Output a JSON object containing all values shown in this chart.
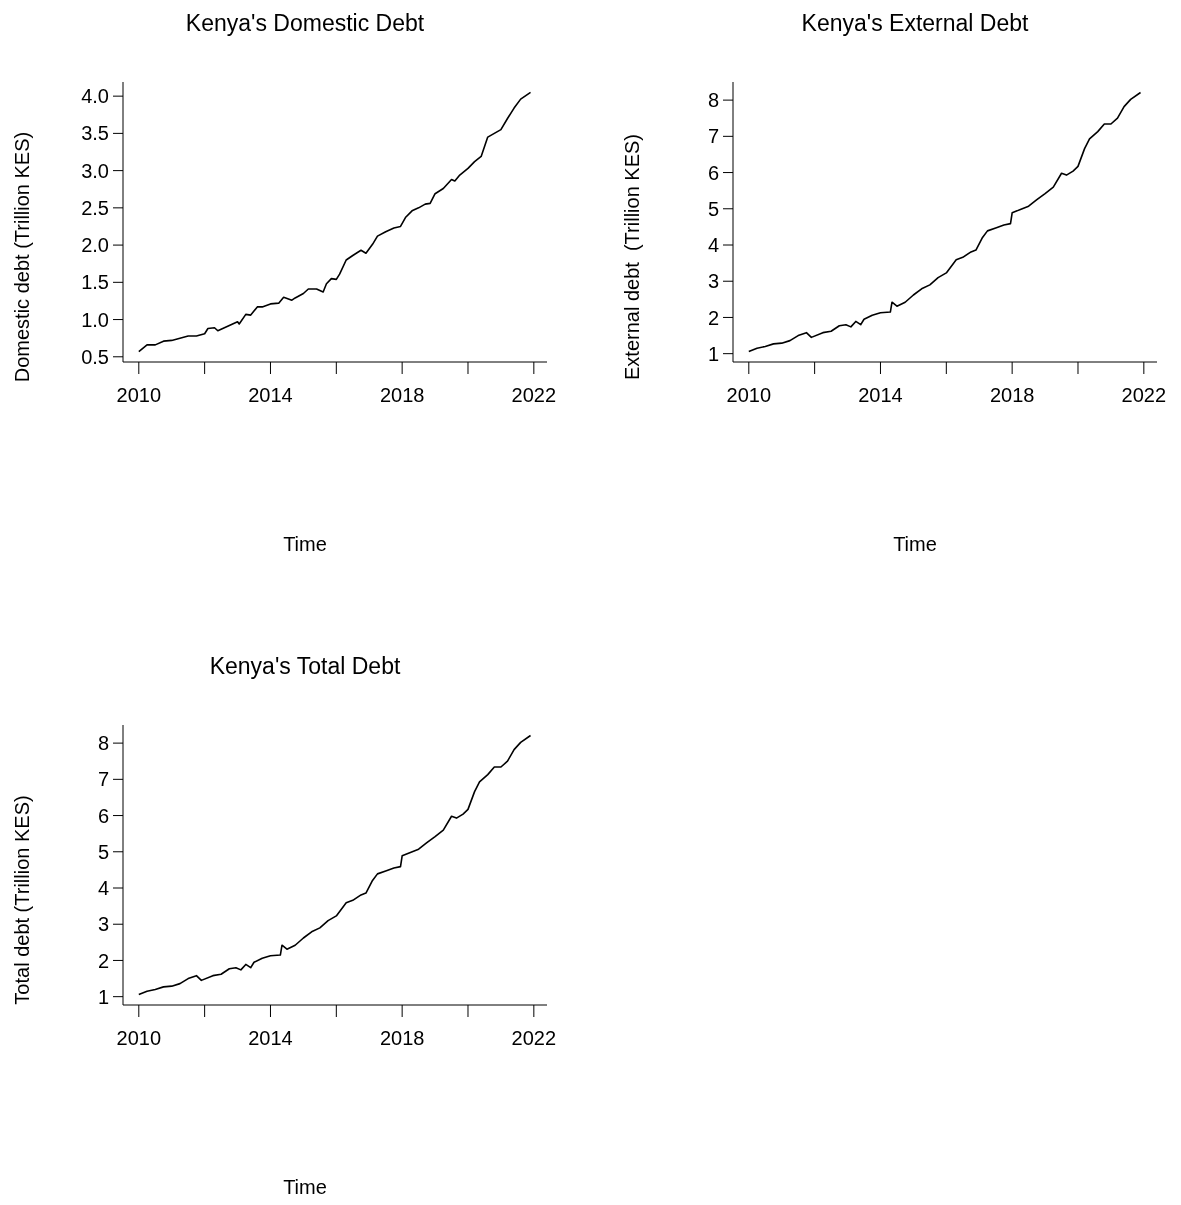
{
  "chart_data": [
    {
      "type": "line",
      "title": "Kenya's Domestic Debt",
      "xlabel": "Time",
      "ylabel": "Domestic debt (Trillion KES)",
      "x": [
        2010.0,
        2010.25,
        2010.5,
        2010.75,
        2011.0,
        2011.25,
        2011.5,
        2011.75,
        2012.0,
        2012.1,
        2012.3,
        2012.4,
        2012.75,
        2013.0,
        2013.05,
        2013.25,
        2013.4,
        2013.6,
        2013.75,
        2014.0,
        2014.25,
        2014.4,
        2014.65,
        2014.75,
        2015.0,
        2015.15,
        2015.4,
        2015.6,
        2015.7,
        2015.85,
        2016.0,
        2016.1,
        2016.3,
        2016.5,
        2016.75,
        2016.9,
        2017.1,
        2017.25,
        2017.5,
        2017.75,
        2017.95,
        2018.1,
        2018.3,
        2018.5,
        2018.7,
        2018.85,
        2019.0,
        2019.25,
        2019.5,
        2019.6,
        2019.75,
        2020.0,
        2020.2,
        2020.4,
        2020.6,
        2020.8,
        2021.0,
        2021.2,
        2021.4,
        2021.6,
        2021.9
      ],
      "series": [
        {
          "color": "#000000",
          "values": [
            0.57,
            0.66,
            0.66,
            0.71,
            0.72,
            0.75,
            0.78,
            0.78,
            0.81,
            0.88,
            0.89,
            0.85,
            0.92,
            0.97,
            0.94,
            1.07,
            1.06,
            1.17,
            1.17,
            1.21,
            1.22,
            1.3,
            1.26,
            1.29,
            1.35,
            1.41,
            1.41,
            1.37,
            1.48,
            1.55,
            1.54,
            1.61,
            1.8,
            1.86,
            1.93,
            1.89,
            2.01,
            2.12,
            2.18,
            2.23,
            2.25,
            2.37,
            2.46,
            2.5,
            2.55,
            2.56,
            2.69,
            2.76,
            2.88,
            2.86,
            2.94,
            3.03,
            3.12,
            3.19,
            3.45,
            3.5,
            3.55,
            3.7,
            3.84,
            3.96,
            4.05
          ]
        }
      ],
      "xlim": [
        2009.52,
        2022.4
      ],
      "ylim": [
        0.43,
        4.19
      ],
      "xticks": [
        2010,
        {
          "value": 2012,
          "label": null
        },
        2014,
        {
          "value": 2016,
          "label": null
        },
        2018,
        {
          "value": 2020,
          "label": null
        },
        2022
      ],
      "yticks": [
        0.5,
        {
          "value": 1,
          "label": "1.0"
        },
        1.5,
        {
          "value": 2,
          "label": "2.0"
        },
        2.5,
        {
          "value": 3,
          "label": "3.0"
        },
        3.5,
        {
          "value": 4,
          "label": "4.0"
        }
      ]
    },
    {
      "type": "line",
      "title": "Kenya's External Debt",
      "xlabel": "Time",
      "ylabel": "External debt  (Trillion KES)",
      "x": [
        2010.0,
        2010.25,
        2010.5,
        2010.75,
        2011.0,
        2011.25,
        2011.5,
        2011.75,
        2011.9,
        2012.25,
        2012.5,
        2012.75,
        2012.95,
        2013.1,
        2013.25,
        2013.4,
        2013.5,
        2013.75,
        2014.0,
        2014.3,
        2014.35,
        2014.5,
        2014.75,
        2015.0,
        2015.25,
        2015.5,
        2015.75,
        2016.0,
        2016.3,
        2016.5,
        2016.75,
        2016.9,
        2017.1,
        2017.25,
        2017.5,
        2017.75,
        2017.95,
        2018.0,
        2018.25,
        2018.5,
        2018.75,
        2019.0,
        2019.25,
        2019.5,
        2019.65,
        2019.85,
        2020.0,
        2020.2,
        2020.35,
        2020.6,
        2020.8,
        2021.0,
        2021.2,
        2021.4,
        2021.6,
        2021.9
      ],
      "series": [
        {
          "color": "#000000",
          "values": [
            1.06,
            1.15,
            1.2,
            1.27,
            1.29,
            1.36,
            1.5,
            1.58,
            1.45,
            1.58,
            1.62,
            1.77,
            1.8,
            1.74,
            1.89,
            1.8,
            1.95,
            2.06,
            2.13,
            2.15,
            2.42,
            2.31,
            2.42,
            2.62,
            2.79,
            2.9,
            3.1,
            3.23,
            3.59,
            3.66,
            3.81,
            3.86,
            4.21,
            4.39,
            4.47,
            4.55,
            4.59,
            4.89,
            4.98,
            5.07,
            5.25,
            5.42,
            5.6,
            5.98,
            5.93,
            6.04,
            6.17,
            6.66,
            6.93,
            7.13,
            7.34,
            7.34,
            7.5,
            7.82,
            8.02,
            8.21
          ]
        }
      ],
      "xlim": [
        2009.52,
        2022.4
      ],
      "ylim": [
        0.77,
        8.5
      ],
      "xticks": [
        2010,
        {
          "value": 2012,
          "label": null
        },
        2014,
        {
          "value": 2016,
          "label": null
        },
        2018,
        {
          "value": 2020,
          "label": null
        },
        2022
      ],
      "yticks": [
        1,
        2,
        3,
        4,
        5,
        6,
        7,
        8
      ]
    },
    {
      "type": "line",
      "title": "Kenya's Total Debt",
      "xlabel": "Time",
      "ylabel": "Total debt (Trillion KES)",
      "x": [
        2010.0,
        2010.25,
        2010.5,
        2010.75,
        2011.0,
        2011.25,
        2011.5,
        2011.75,
        2011.9,
        2012.25,
        2012.5,
        2012.75,
        2012.95,
        2013.1,
        2013.25,
        2013.4,
        2013.5,
        2013.75,
        2014.0,
        2014.3,
        2014.35,
        2014.5,
        2014.75,
        2015.0,
        2015.25,
        2015.5,
        2015.75,
        2016.0,
        2016.3,
        2016.5,
        2016.75,
        2016.9,
        2017.1,
        2017.25,
        2017.5,
        2017.75,
        2017.95,
        2018.0,
        2018.25,
        2018.5,
        2018.75,
        2019.0,
        2019.25,
        2019.5,
        2019.65,
        2019.85,
        2020.0,
        2020.2,
        2020.35,
        2020.6,
        2020.8,
        2021.0,
        2021.2,
        2021.4,
        2021.6,
        2021.9
      ],
      "series": [
        {
          "color": "#000000",
          "values": [
            1.06,
            1.15,
            1.2,
            1.27,
            1.29,
            1.36,
            1.5,
            1.58,
            1.45,
            1.58,
            1.62,
            1.77,
            1.8,
            1.74,
            1.89,
            1.8,
            1.95,
            2.06,
            2.13,
            2.15,
            2.42,
            2.31,
            2.42,
            2.62,
            2.79,
            2.9,
            3.1,
            3.23,
            3.59,
            3.66,
            3.81,
            3.86,
            4.21,
            4.39,
            4.47,
            4.55,
            4.59,
            4.89,
            4.98,
            5.07,
            5.25,
            5.42,
            5.6,
            5.98,
            5.93,
            6.04,
            6.17,
            6.66,
            6.93,
            7.13,
            7.34,
            7.34,
            7.5,
            7.82,
            8.02,
            8.21
          ]
        }
      ],
      "xlim": [
        2009.52,
        2022.4
      ],
      "ylim": [
        0.77,
        8.5
      ],
      "xticks": [
        2010,
        {
          "value": 2012,
          "label": null
        },
        2014,
        {
          "value": 2016,
          "label": null
        },
        2018,
        {
          "value": 2020,
          "label": null
        },
        2022
      ],
      "yticks": [
        1,
        2,
        3,
        4,
        5,
        6,
        7,
        8
      ]
    }
  ]
}
